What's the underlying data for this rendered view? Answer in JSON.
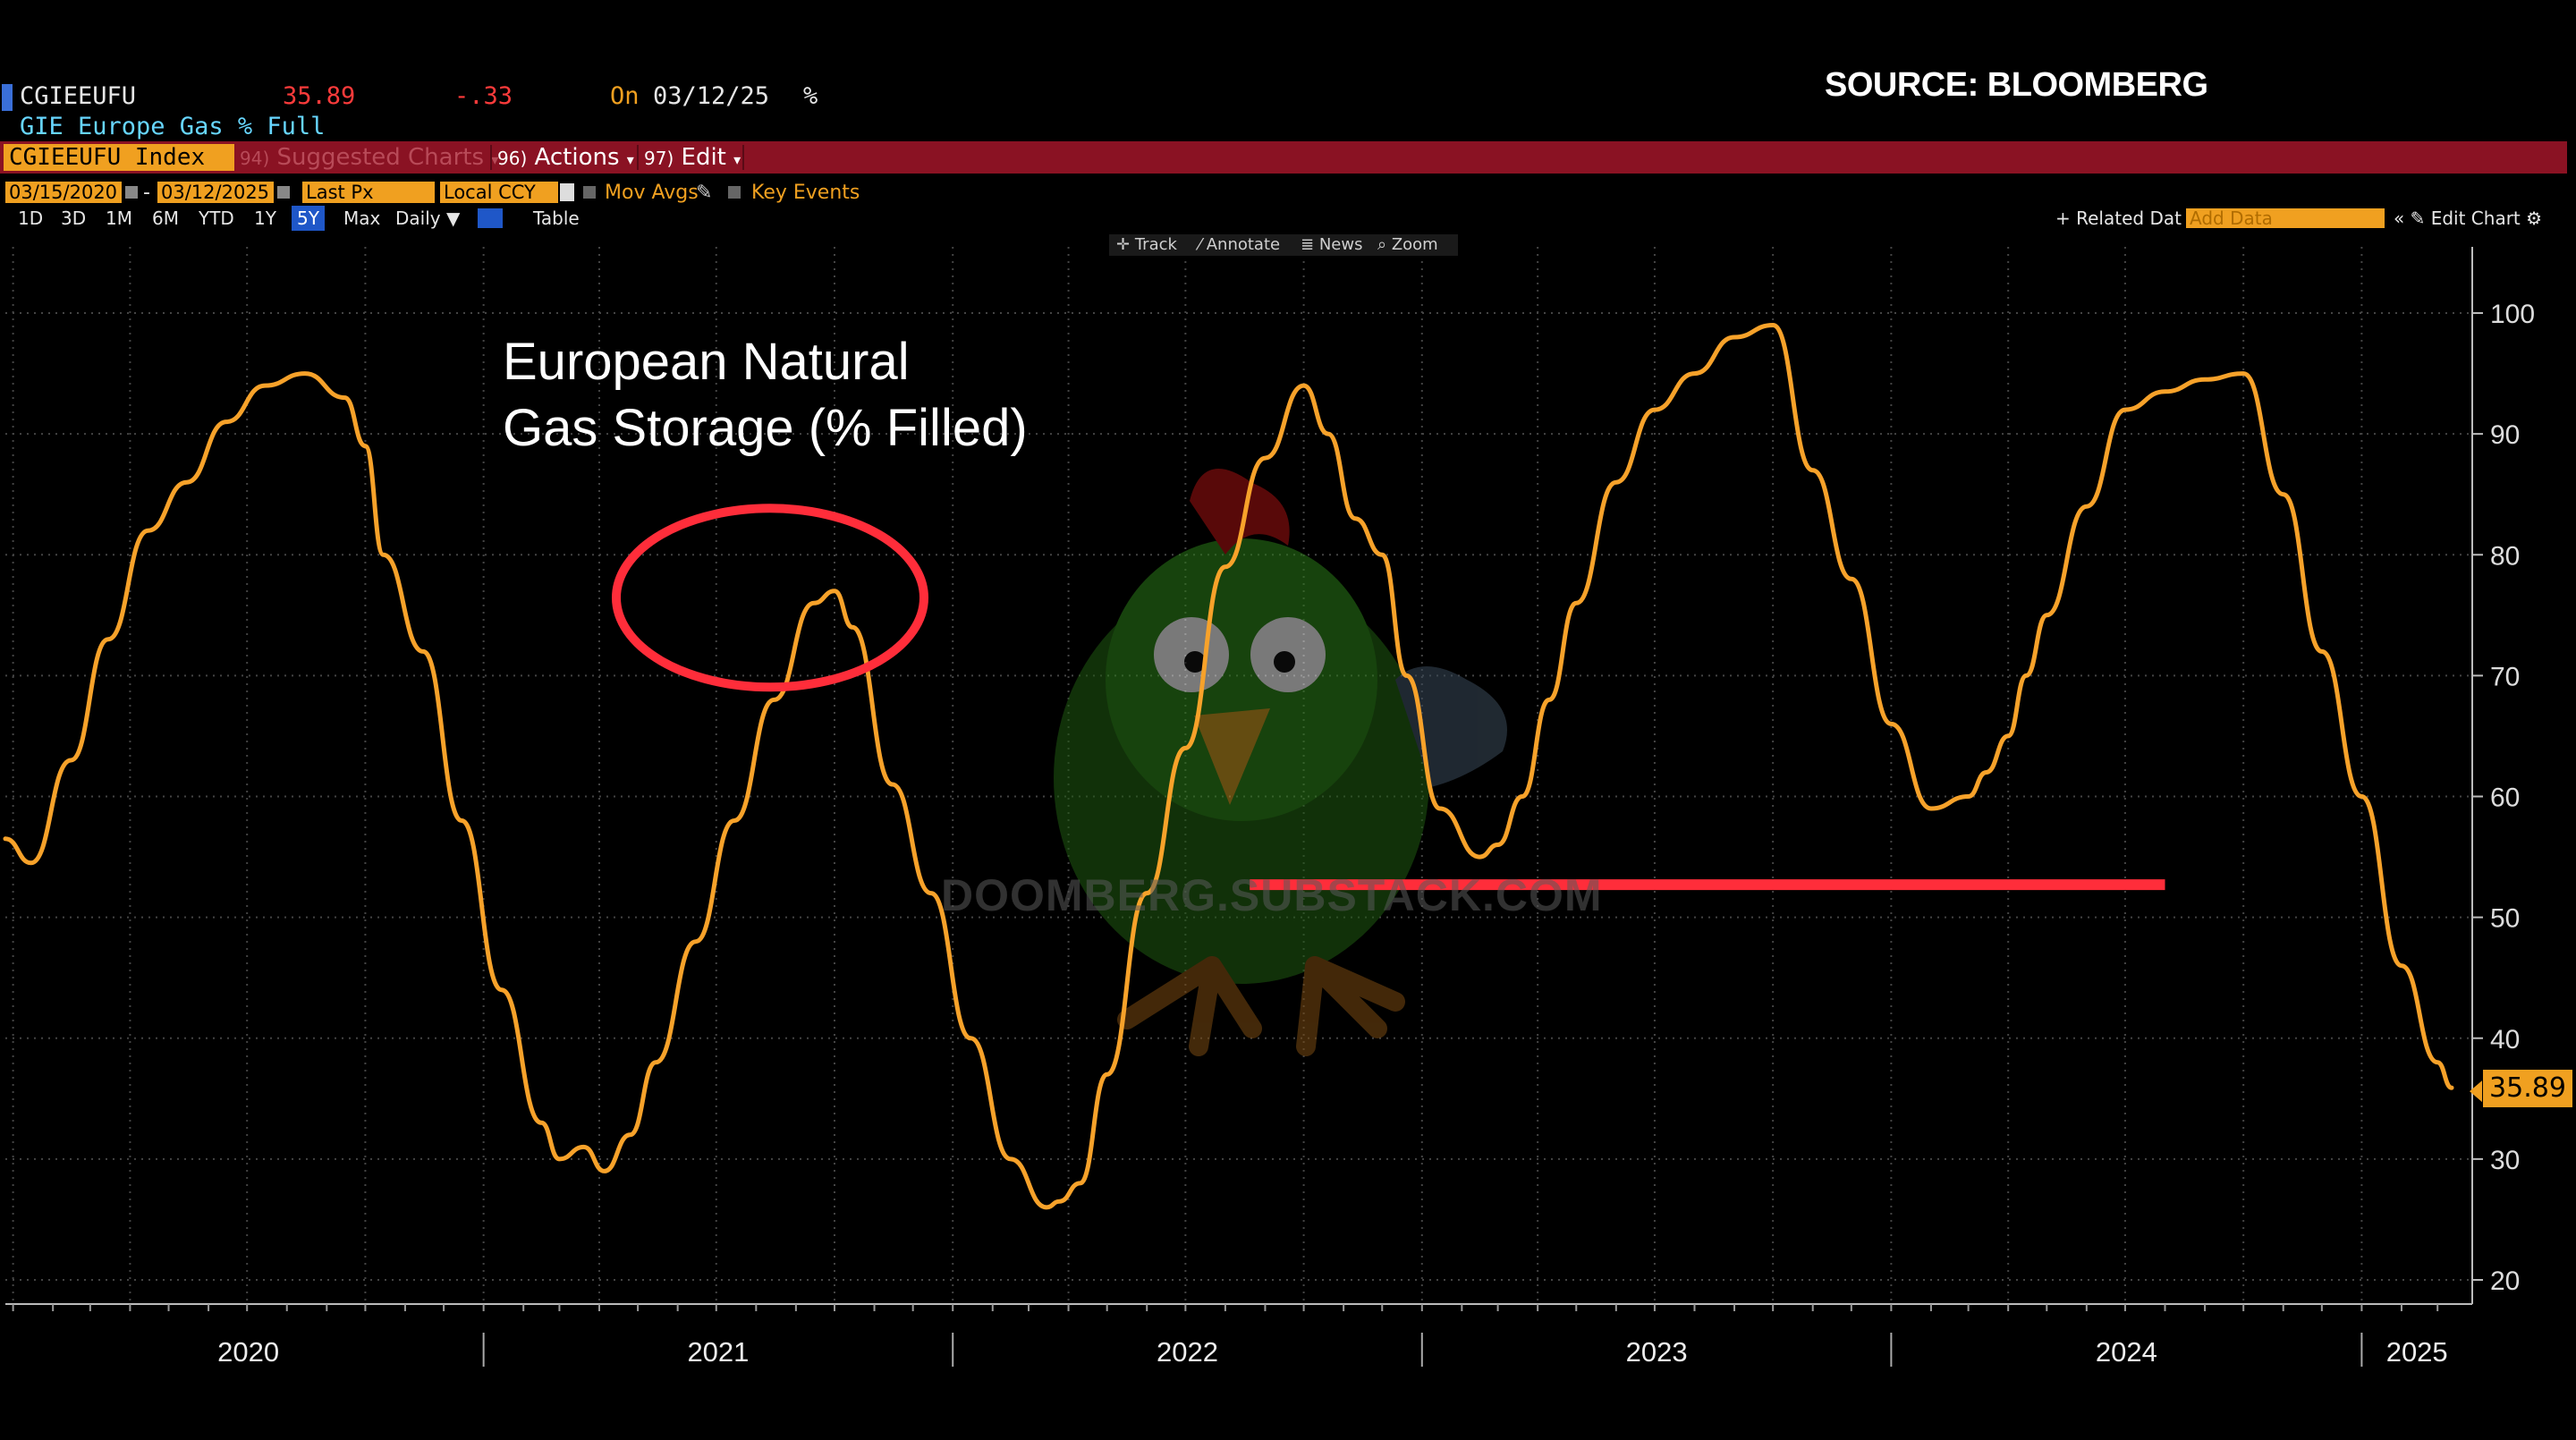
{
  "header": {
    "ticker": "CGIEEUFU",
    "last_price": "35.89",
    "change": "-.33",
    "on_label": "On",
    "date": "03/12/25",
    "unit": "%",
    "security_name": "GIE Europe Gas % Full",
    "source": "SOURCE: BLOOMBERG"
  },
  "toolbar": {
    "index_label": "CGIEEUFU Index",
    "suggested_num": "94)",
    "suggested_label": "Suggested Charts",
    "actions_num": "96)",
    "actions_label": "Actions",
    "edit_num": "97)",
    "edit_label": "Edit"
  },
  "settings": {
    "start_date": "03/15/2020",
    "end_date": "03/12/2025",
    "field": "Last Px",
    "currency": "Local CCY",
    "mov_avgs": "Mov Avgs",
    "key_events": "Key Events"
  },
  "ranges": {
    "r1d": "1D",
    "r3d": "3D",
    "r1m": "1M",
    "r6m": "6M",
    "rytd": "YTD",
    "r1y": "1Y",
    "r5y": "5Y",
    "rmax": "Max",
    "frequency": "Daily",
    "table": "Table",
    "related": "Related Dat",
    "add_data": "Add Data",
    "edit_chart": "Edit Chart"
  },
  "tools": {
    "track": "Track",
    "annotate": "Annotate",
    "news": "News",
    "zoom": "Zoom"
  },
  "watermark": "DOOMBERG.SUBSTACK.COM",
  "colors": {
    "line": "#f7a22a",
    "annotation": "#ff2d3a",
    "accent": "#f0a020",
    "toolbar": "#8a1223"
  },
  "chart_data": {
    "type": "line",
    "title": "European Natural Gas Storage (% Filled)",
    "title_line1": "European Natural",
    "title_line2": "Gas Storage (% Filled)",
    "ylim": [
      18,
      103
    ],
    "yticks": [
      20,
      30,
      40,
      50,
      60,
      70,
      80,
      90,
      100
    ],
    "ytick_labels": [
      "20",
      "30",
      "40",
      "50",
      "60",
      "70",
      "80",
      "90",
      "100"
    ],
    "xlim": [
      "2019-12-26",
      "2025-03-28"
    ],
    "year_labels": [
      "2020",
      "2021",
      "2022",
      "2023",
      "2024",
      "2025"
    ],
    "last_value_label": "35.89",
    "grid": true,
    "series": [
      {
        "color": "#f7a22a",
        "x": [
          "2019-12-26",
          "2020-01-15",
          "2020-02-15",
          "2020-03-15",
          "2020-04-15",
          "2020-05-15",
          "2020-06-15",
          "2020-07-15",
          "2020-08-15",
          "2020-09-15",
          "2020-10-01",
          "2020-10-15",
          "2020-11-15",
          "2020-12-15",
          "2021-01-15",
          "2021-02-15",
          "2021-03-01",
          "2021-03-20",
          "2021-04-05",
          "2021-04-25",
          "2021-05-15",
          "2021-06-15",
          "2021-07-15",
          "2021-08-15",
          "2021-09-15",
          "2021-10-01",
          "2021-10-15",
          "2021-11-15",
          "2021-12-15",
          "2022-01-15",
          "2022-02-15",
          "2022-03-15",
          "2022-03-25",
          "2022-04-10",
          "2022-05-01",
          "2022-06-01",
          "2022-07-01",
          "2022-08-01",
          "2022-09-01",
          "2022-10-01",
          "2022-10-20",
          "2022-11-10",
          "2022-12-01",
          "2022-12-20",
          "2023-01-15",
          "2023-02-15",
          "2023-03-01",
          "2023-03-20",
          "2023-04-10",
          "2023-05-01",
          "2023-06-01",
          "2023-07-01",
          "2023-08-01",
          "2023-09-01",
          "2023-10-01",
          "2023-11-01",
          "2023-12-01",
          "2024-01-01",
          "2024-02-01",
          "2024-03-01",
          "2024-03-15",
          "2024-04-01",
          "2024-04-15",
          "2024-05-01",
          "2024-06-01",
          "2024-07-01",
          "2024-08-01",
          "2024-09-01",
          "2024-10-01",
          "2024-11-01",
          "2024-12-01",
          "2025-01-01",
          "2025-02-01",
          "2025-03-01",
          "2025-03-12"
        ],
        "values": [
          56.5,
          54.5,
          63,
          73,
          82,
          86,
          91,
          94,
          95,
          93,
          89,
          80,
          72,
          58,
          44,
          33,
          30,
          31,
          29,
          32,
          38,
          48,
          58,
          68,
          76,
          77,
          74,
          61,
          52,
          40,
          30,
          26,
          26.5,
          28,
          37,
          52,
          64,
          79,
          88,
          94,
          90,
          83,
          80,
          70,
          59,
          55,
          56,
          60,
          68,
          76,
          86,
          92,
          95,
          98,
          99,
          87,
          78,
          66,
          59,
          60,
          62,
          65,
          70,
          75,
          84,
          92,
          93.5,
          94.5,
          95,
          85,
          72,
          60,
          46,
          38,
          35.9
        ]
      }
    ],
    "annotations": [
      {
        "type": "ellipse",
        "note": "circled peak",
        "x": "2021-10-01",
        "y": 76
      },
      {
        "type": "hline",
        "y": 52.7,
        "x_start": "2022-08-20",
        "x_end": "2024-08-01"
      }
    ]
  }
}
